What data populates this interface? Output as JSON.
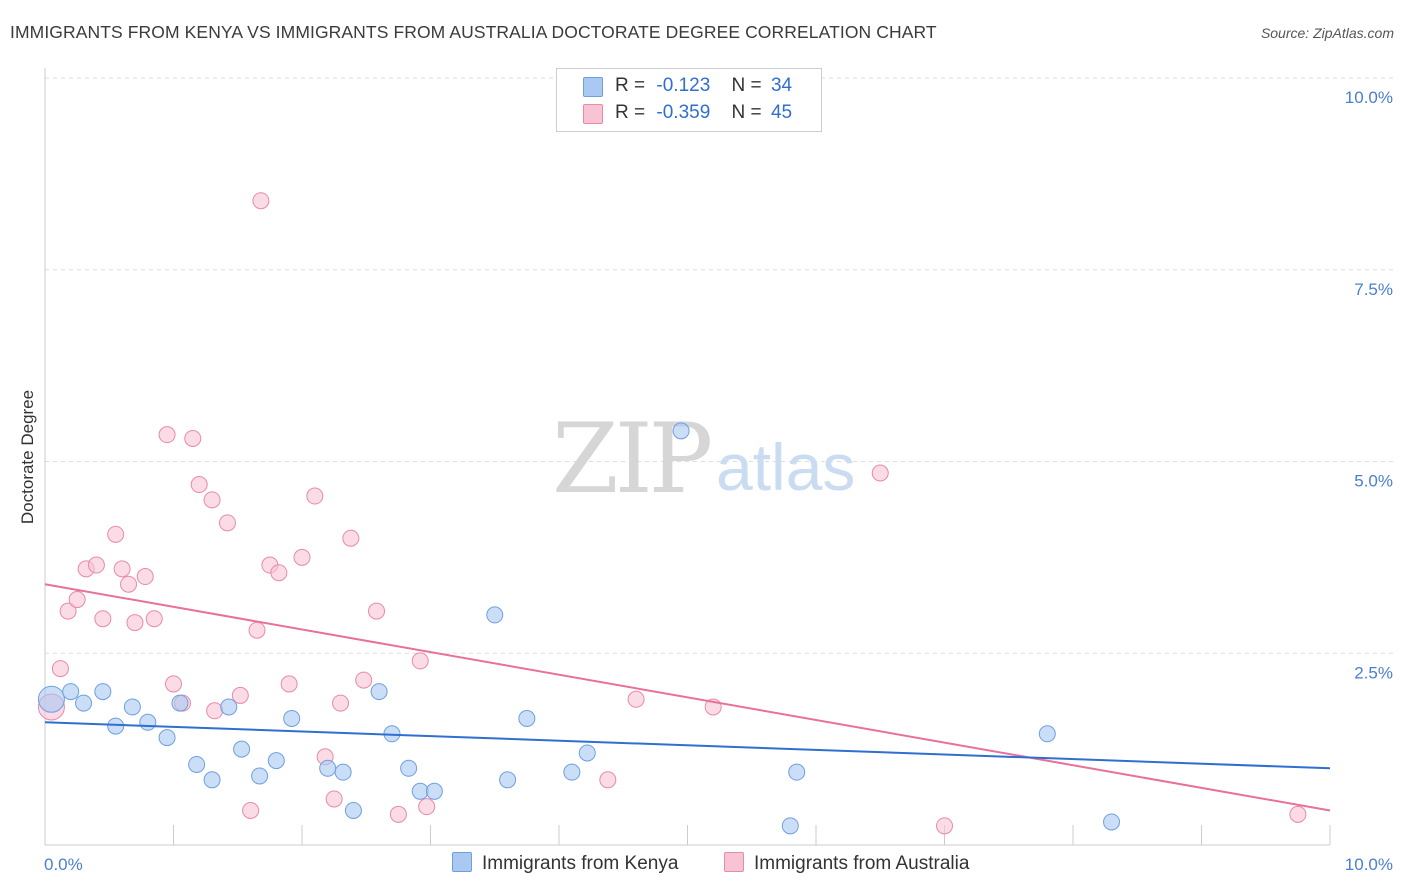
{
  "title": "IMMIGRANTS FROM KENYA VS IMMIGRANTS FROM AUSTRALIA DOCTORATE DEGREE CORRELATION CHART",
  "source": "Source: ZipAtlas.com",
  "watermark": {
    "zip": "ZIP",
    "atlas": "atlas"
  },
  "legend": {
    "rows": [
      {
        "r_label": "R =",
        "r_value": "-0.123",
        "n_label": "N =",
        "n_value": "34",
        "color": "#a9c8f2",
        "border": "#6f9fdf"
      },
      {
        "r_label": "R =",
        "r_value": "-0.359",
        "n_label": "N =",
        "n_value": "45",
        "color": "#f8c3d3",
        "border": "#e98aa9"
      }
    ]
  },
  "bottom_legend": {
    "kenya": "Immigrants from Kenya",
    "australia": "Immigrants from Australia"
  },
  "chart_data": {
    "type": "scatter",
    "title": "IMMIGRANTS FROM KENYA VS IMMIGRANTS FROM AUSTRALIA DOCTORATE DEGREE CORRELATION CHART",
    "ylabel": "Doctorate Degree",
    "xlabel": "",
    "x_ticks": [
      "0.0%",
      "10.0%"
    ],
    "y_ticks": [
      "2.5%",
      "5.0%",
      "7.5%",
      "10.0%"
    ],
    "xlim": [
      0,
      10
    ],
    "ylim": [
      0,
      10
    ],
    "grid": true,
    "colors": {
      "kenya": "#6f9fdf",
      "kenya_fill": "#a9c8f2",
      "kenya_line": "#2f6fd0",
      "australia": "#e98aa9",
      "australia_fill": "#f8c3d3",
      "australia_line": "#e8709a"
    },
    "series": [
      {
        "name": "Immigrants from Kenya",
        "trend": [
          [
            0,
            1.6
          ],
          [
            10,
            1.0
          ]
        ],
        "points": [
          [
            0.05,
            1.9
          ],
          [
            0.2,
            2.0
          ],
          [
            0.3,
            1.85
          ],
          [
            0.45,
            2.0
          ],
          [
            0.55,
            1.55
          ],
          [
            0.68,
            1.8
          ],
          [
            0.8,
            1.6
          ],
          [
            0.95,
            1.4
          ],
          [
            1.05,
            1.85
          ],
          [
            1.18,
            1.05
          ],
          [
            1.3,
            0.85
          ],
          [
            1.43,
            1.8
          ],
          [
            1.53,
            1.25
          ],
          [
            1.67,
            0.9
          ],
          [
            1.8,
            1.1
          ],
          [
            1.92,
            1.65
          ],
          [
            2.2,
            1.0
          ],
          [
            2.32,
            0.95
          ],
          [
            2.4,
            0.45
          ],
          [
            2.6,
            2.0
          ],
          [
            2.7,
            1.45
          ],
          [
            2.83,
            1.0
          ],
          [
            2.92,
            0.7
          ],
          [
            3.03,
            0.7
          ],
          [
            3.5,
            3.0
          ],
          [
            3.6,
            0.85
          ],
          [
            3.75,
            1.65
          ],
          [
            4.1,
            0.95
          ],
          [
            4.22,
            1.2
          ],
          [
            4.95,
            5.4
          ],
          [
            5.8,
            0.25
          ],
          [
            5.85,
            0.95
          ],
          [
            7.8,
            1.45
          ],
          [
            8.3,
            0.3
          ]
        ]
      },
      {
        "name": "Immigrants from Australia",
        "trend": [
          [
            0,
            3.4
          ],
          [
            10,
            0.45
          ]
        ],
        "points": [
          [
            0.05,
            1.8
          ],
          [
            0.12,
            2.3
          ],
          [
            0.18,
            3.05
          ],
          [
            0.25,
            3.2
          ],
          [
            0.32,
            3.6
          ],
          [
            0.4,
            3.65
          ],
          [
            0.45,
            2.95
          ],
          [
            0.55,
            4.05
          ],
          [
            0.6,
            3.6
          ],
          [
            0.65,
            3.4
          ],
          [
            0.7,
            2.9
          ],
          [
            0.78,
            3.5
          ],
          [
            0.85,
            2.95
          ],
          [
            0.95,
            5.35
          ],
          [
            1.0,
            2.1
          ],
          [
            1.07,
            1.85
          ],
          [
            1.15,
            5.3
          ],
          [
            1.2,
            4.7
          ],
          [
            1.3,
            4.5
          ],
          [
            1.32,
            1.75
          ],
          [
            1.42,
            4.2
          ],
          [
            1.52,
            1.95
          ],
          [
            1.6,
            0.45
          ],
          [
            1.65,
            2.8
          ],
          [
            1.68,
            8.4
          ],
          [
            1.75,
            3.65
          ],
          [
            1.82,
            3.55
          ],
          [
            1.9,
            2.1
          ],
          [
            2.0,
            3.75
          ],
          [
            2.1,
            4.55
          ],
          [
            2.18,
            1.15
          ],
          [
            2.25,
            0.6
          ],
          [
            2.3,
            1.85
          ],
          [
            2.38,
            4.0
          ],
          [
            2.48,
            2.15
          ],
          [
            2.58,
            3.05
          ],
          [
            2.75,
            0.4
          ],
          [
            2.92,
            2.4
          ],
          [
            2.97,
            0.5
          ],
          [
            4.38,
            0.85
          ],
          [
            4.6,
            1.9
          ],
          [
            5.2,
            1.8
          ],
          [
            6.5,
            4.85
          ],
          [
            7.0,
            0.25
          ],
          [
            9.75,
            0.4
          ]
        ]
      }
    ]
  }
}
